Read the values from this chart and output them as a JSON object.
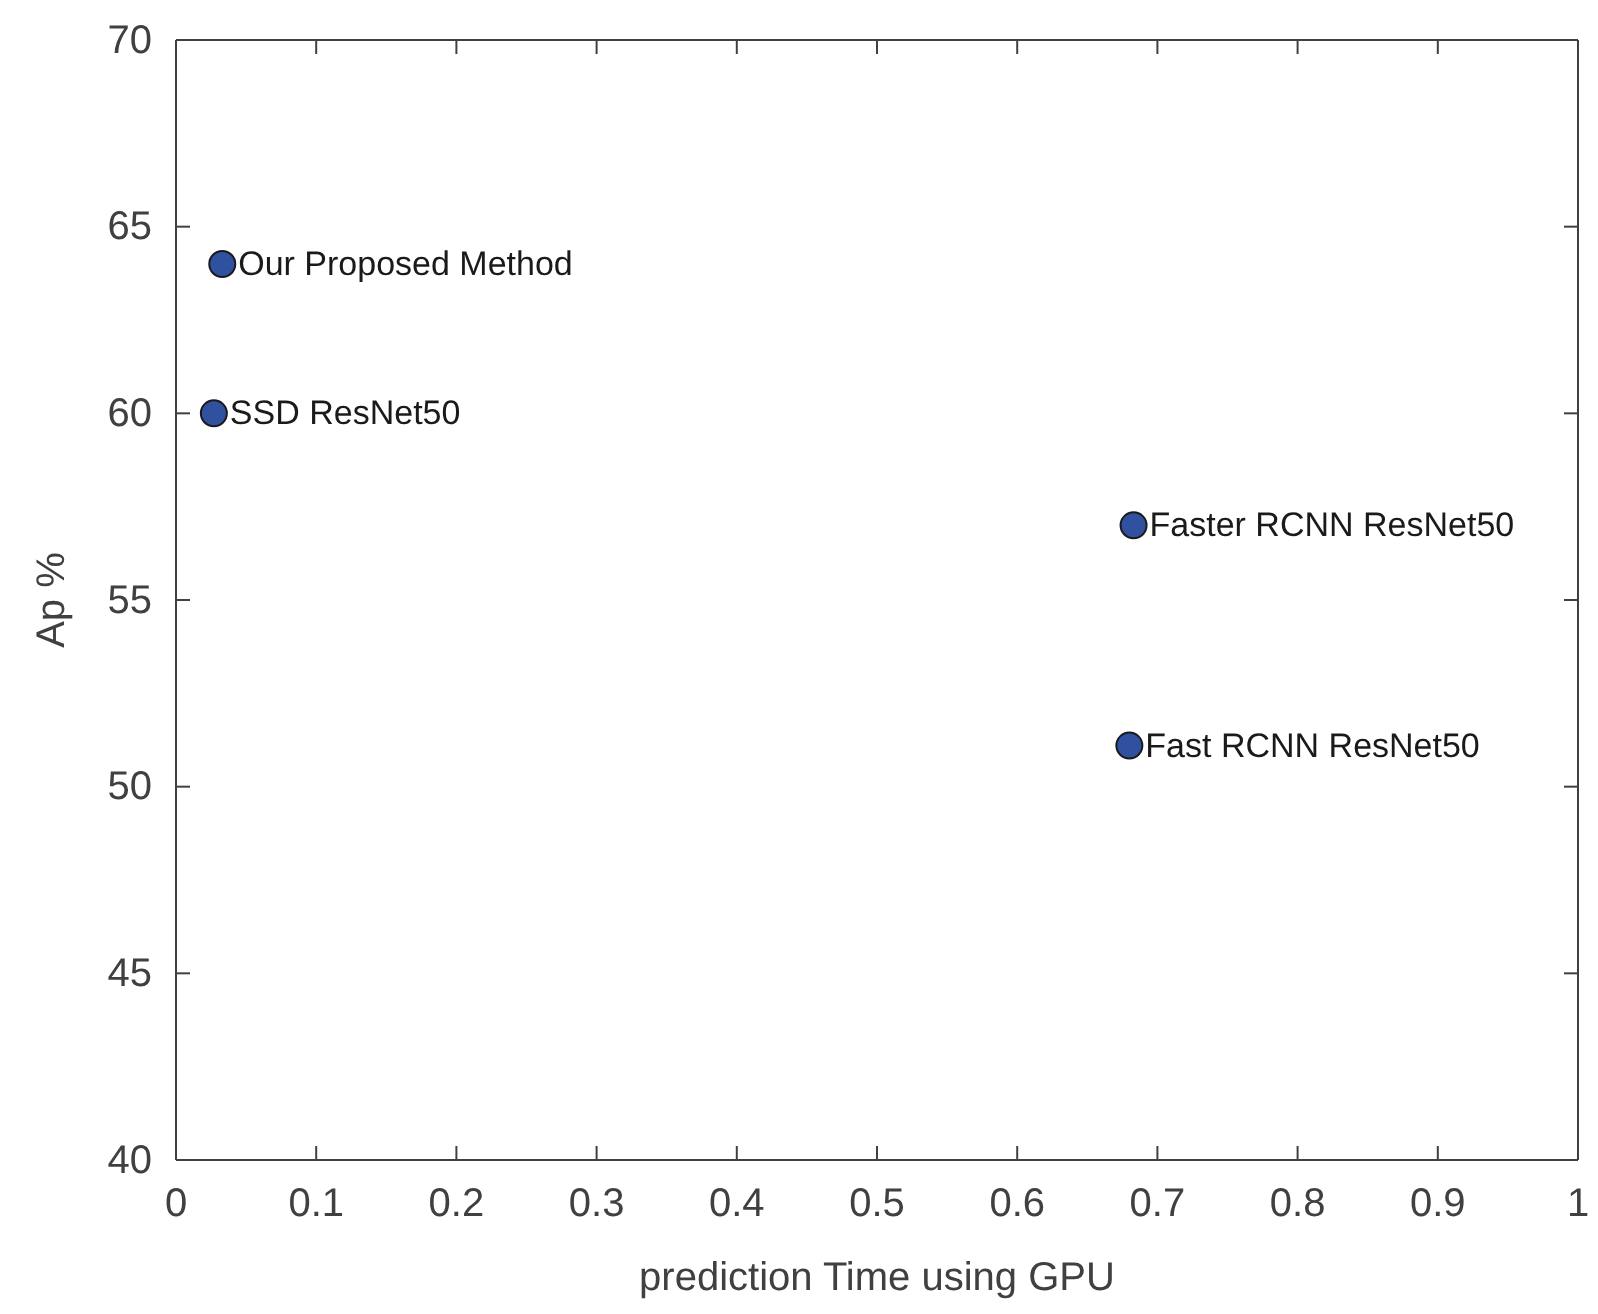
{
  "chart_data": {
    "type": "scatter",
    "xlabel": "prediction Time using GPU",
    "ylabel": "Ap %",
    "x": [
      0.033,
      0.027,
      0.683,
      0.68
    ],
    "series": [
      {
        "color": "#3050a0",
        "values": [
          64,
          60,
          57,
          51.1
        ]
      }
    ],
    "annotations": [
      {
        "text": "Our Proposed Method",
        "x": 0.033,
        "y": 64
      },
      {
        "text": "SSD ResNet50",
        "x": 0.027,
        "y": 60
      },
      {
        "text": "Faster RCNN ResNet50",
        "x": 0.683,
        "y": 57
      },
      {
        "text": "Fast RCNN ResNet50",
        "x": 0.68,
        "y": 51.1
      }
    ],
    "xlim": [
      0,
      1
    ],
    "ylim": [
      40,
      70
    ],
    "xticks": [
      0,
      0.1,
      0.2,
      0.3,
      0.4,
      0.5,
      0.6,
      0.7,
      0.8,
      0.9,
      1
    ],
    "yticks": [
      40,
      45,
      50,
      55,
      60,
      65,
      70
    ],
    "grid": false,
    "marker": "circle"
  }
}
